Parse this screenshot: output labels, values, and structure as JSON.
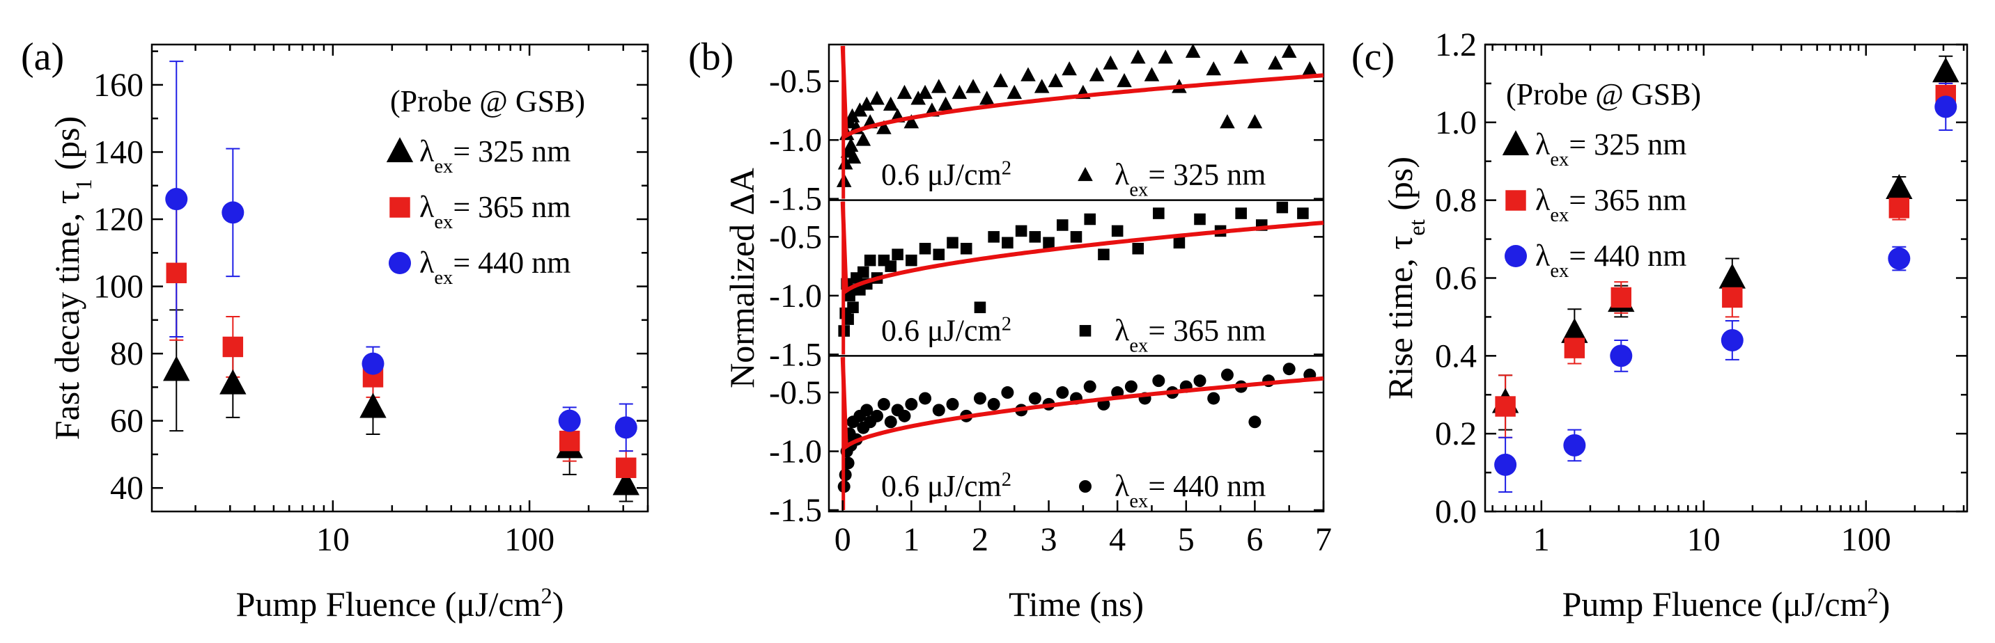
{
  "colors": {
    "black": "#000000",
    "red": "#e8201c",
    "blue": "#1f1fe6",
    "fit": "#e81010"
  },
  "chart_data": [
    {
      "type": "scatter",
      "panel_label": "(a)",
      "xscale": "log",
      "xlim": [
        1.2,
        400
      ],
      "ylim": [
        33,
        172
      ],
      "xlabel": {
        "text": "Pump Fluence (μJ/cm",
        "sup": "2",
        "close": ")"
      },
      "ylabel": {
        "text": "Fast decay time, τ",
        "sub": "1",
        "close": " (ps)"
      },
      "xticks": [
        {
          "value": 10,
          "label": "10"
        },
        {
          "value": 100,
          "label": "100"
        }
      ],
      "yticks": [
        {
          "value": 40,
          "label": "40"
        },
        {
          "value": 60,
          "label": "60"
        },
        {
          "value": 80,
          "label": "80"
        },
        {
          "value": 100,
          "label": "100"
        },
        {
          "value": 120,
          "label": "120"
        },
        {
          "value": 140,
          "label": "140"
        },
        {
          "value": 160,
          "label": "160"
        }
      ],
      "legend": {
        "header": "(Probe @ GSB)",
        "entries": [
          {
            "prefix": "λ",
            "sub": "ex",
            "text": "= 325 nm"
          },
          {
            "prefix": "λ",
            "sub": "ex",
            "text": "= 365 nm"
          },
          {
            "prefix": "λ",
            "sub": "ex",
            "text": "= 440 nm"
          }
        ]
      },
      "series": [
        {
          "name": "λex= 325 nm",
          "marker": "triangle",
          "color": "#000000",
          "x": [
            1.6,
            3.1,
            16,
            160,
            310
          ],
          "y": [
            75,
            71,
            64,
            52,
            41
          ],
          "err": [
            18,
            10,
            8,
            8,
            5
          ]
        },
        {
          "name": "λex= 365 nm",
          "marker": "square",
          "color": "#e8201c",
          "x": [
            1.6,
            3.1,
            16,
            160,
            310
          ],
          "y": [
            104,
            82,
            73,
            54,
            46
          ],
          "err": [
            20,
            9,
            6,
            6,
            5
          ]
        },
        {
          "name": "λex= 440 nm",
          "marker": "circle",
          "color": "#1f1fe6",
          "x": [
            1.6,
            3.1,
            16,
            160,
            310
          ],
          "y": [
            126,
            122,
            77,
            60,
            58
          ],
          "err": [
            41,
            19,
            5,
            4,
            7
          ]
        }
      ]
    },
    {
      "type": "scatter",
      "panel_label": "(b)",
      "xlim": [
        -0.2,
        7
      ],
      "xlabel": {
        "text": "Time (ns)"
      },
      "ylabel": {
        "text": "Normalized ΔA"
      },
      "xticks": [
        {
          "value": 0,
          "label": "0"
        },
        {
          "value": 1,
          "label": "1"
        },
        {
          "value": 2,
          "label": "2"
        },
        {
          "value": 3,
          "label": "3"
        },
        {
          "value": 4,
          "label": "4"
        },
        {
          "value": 5,
          "label": "5"
        },
        {
          "value": 6,
          "label": "6"
        },
        {
          "value": 7,
          "label": "7"
        }
      ],
      "subpanels": [
        {
          "ylim": [
            -1.5,
            -0.2
          ],
          "marker": "triangle",
          "yticks": [
            {
              "value": -0.5,
              "label": "-0.5"
            },
            {
              "value": -1.0,
              "label": "-1.0"
            },
            {
              "value": -1.5,
              "label": "-1.5"
            }
          ],
          "fluence": {
            "text": "0.6 μJ/cm",
            "sup": "2"
          },
          "label": {
            "prefix": "λ",
            "sub": "ex",
            "text": "= 325 nm"
          },
          "fit": {
            "y0": -1.0,
            "y7": -0.45
          },
          "x": [
            0.02,
            0.04,
            0.06,
            0.08,
            0.1,
            0.12,
            0.14,
            0.16,
            0.2,
            0.25,
            0.3,
            0.35,
            0.4,
            0.5,
            0.6,
            0.7,
            0.8,
            0.9,
            1.0,
            1.1,
            1.2,
            1.3,
            1.4,
            1.5,
            1.7,
            1.9,
            2.1,
            2.3,
            2.5,
            2.7,
            2.9,
            3.1,
            3.3,
            3.5,
            3.7,
            3.9,
            4.1,
            4.3,
            4.5,
            4.7,
            4.9,
            5.1,
            5.4,
            5.6,
            5.8,
            6.0,
            6.3,
            6.5,
            6.8
          ],
          "y": [
            -1.35,
            -1.2,
            -0.95,
            -1.1,
            -0.85,
            -1.05,
            -0.8,
            -1.15,
            -0.9,
            -0.75,
            -1.0,
            -0.7,
            -0.85,
            -0.65,
            -0.9,
            -0.7,
            -0.8,
            -0.6,
            -0.85,
            -0.65,
            -0.6,
            -0.75,
            -0.55,
            -0.7,
            -0.6,
            -0.55,
            -0.65,
            -0.5,
            -0.6,
            -0.45,
            -0.55,
            -0.5,
            -0.4,
            -0.6,
            -0.45,
            -0.35,
            -0.5,
            -0.3,
            -0.45,
            -0.3,
            -0.55,
            -0.25,
            -0.4,
            -0.85,
            -0.3,
            -0.85,
            -0.35,
            -0.25,
            -0.4
          ]
        },
        {
          "ylim": [
            -1.5,
            -0.2
          ],
          "marker": "square",
          "yticks": [
            {
              "value": -0.5,
              "label": "-0.5"
            },
            {
              "value": -1.0,
              "label": "-1.0"
            },
            {
              "value": -1.5,
              "label": "-1.5"
            }
          ],
          "fluence": {
            "text": "0.6 μJ/cm",
            "sup": "2"
          },
          "label": {
            "prefix": "λ",
            "sub": "ex",
            "text": "= 365 nm"
          },
          "fit": {
            "y0": -1.0,
            "y7": -0.38
          },
          "x": [
            0.02,
            0.04,
            0.06,
            0.08,
            0.1,
            0.12,
            0.15,
            0.2,
            0.25,
            0.3,
            0.35,
            0.4,
            0.5,
            0.6,
            0.7,
            0.8,
            1.0,
            1.2,
            1.4,
            1.6,
            1.8,
            2.0,
            2.2,
            2.4,
            2.6,
            2.8,
            3.0,
            3.2,
            3.4,
            3.6,
            3.8,
            4.0,
            4.3,
            4.6,
            4.9,
            5.2,
            5.5,
            5.8,
            6.1,
            6.4,
            6.7
          ],
          "y": [
            -1.3,
            -1.15,
            -0.9,
            -1.2,
            -1.0,
            -0.95,
            -1.1,
            -0.85,
            -0.95,
            -0.8,
            -0.9,
            -0.7,
            -0.85,
            -0.7,
            -0.75,
            -0.65,
            -0.7,
            -0.6,
            -0.65,
            -0.55,
            -0.6,
            -1.1,
            -0.5,
            -0.55,
            -0.45,
            -0.5,
            -0.55,
            -0.4,
            -0.5,
            -0.35,
            -0.65,
            -0.45,
            -0.6,
            -0.3,
            -0.55,
            -0.35,
            -0.45,
            -0.3,
            -0.4,
            -0.25,
            -0.3
          ]
        },
        {
          "ylim": [
            -1.5,
            -0.2
          ],
          "marker": "circle",
          "yticks": [
            {
              "value": -0.5,
              "label": "-0.5"
            },
            {
              "value": -1.0,
              "label": "-1.0"
            },
            {
              "value": -1.5,
              "label": "-1.5"
            }
          ],
          "fluence": {
            "text": "0.6 μJ/cm",
            "sup": "2"
          },
          "label": {
            "prefix": "λ",
            "sub": "ex",
            "text": "= 440 nm"
          },
          "fit": {
            "y0": -1.0,
            "y7": -0.38
          },
          "x": [
            0.02,
            0.04,
            0.06,
            0.08,
            0.1,
            0.12,
            0.15,
            0.2,
            0.25,
            0.3,
            0.35,
            0.4,
            0.5,
            0.6,
            0.7,
            0.8,
            0.9,
            1.0,
            1.2,
            1.4,
            1.6,
            1.8,
            2.0,
            2.2,
            2.4,
            2.6,
            2.8,
            3.0,
            3.2,
            3.4,
            3.6,
            3.8,
            4.0,
            4.2,
            4.4,
            4.6,
            4.8,
            5.0,
            5.2,
            5.4,
            5.6,
            5.8,
            6.0,
            6.2,
            6.5,
            6.8
          ],
          "y": [
            -1.3,
            -1.2,
            -1.0,
            -1.1,
            -0.85,
            -0.95,
            -0.75,
            -0.9,
            -0.7,
            -0.8,
            -0.65,
            -0.75,
            -0.7,
            -0.6,
            -0.75,
            -0.65,
            -0.7,
            -0.6,
            -0.55,
            -0.65,
            -0.6,
            -0.7,
            -0.55,
            -0.6,
            -0.5,
            -0.65,
            -0.55,
            -0.6,
            -0.5,
            -0.55,
            -0.45,
            -0.6,
            -0.5,
            -0.45,
            -0.55,
            -0.4,
            -0.5,
            -0.45,
            -0.4,
            -0.55,
            -0.35,
            -0.45,
            -0.75,
            -0.4,
            -0.3,
            -0.35
          ]
        }
      ]
    },
    {
      "type": "scatter",
      "panel_label": "(c)",
      "xscale": "log",
      "xlim": [
        0.45,
        420
      ],
      "ylim": [
        0,
        1.2
      ],
      "xlabel": {
        "text": "Pump Fluence (μJ/cm",
        "sup": "2",
        "close": ")"
      },
      "ylabel": {
        "text": "Rise time, τ",
        "sub": "et",
        "close": " (ps)"
      },
      "xticks": [
        {
          "value": 1,
          "label": "1"
        },
        {
          "value": 10,
          "label": "10"
        },
        {
          "value": 100,
          "label": "100"
        }
      ],
      "yticks": [
        {
          "value": 0.0,
          "label": "0.0"
        },
        {
          "value": 0.2,
          "label": "0.2"
        },
        {
          "value": 0.4,
          "label": "0.4"
        },
        {
          "value": 0.6,
          "label": "0.6"
        },
        {
          "value": 0.8,
          "label": "0.8"
        },
        {
          "value": 1.0,
          "label": "1.0"
        },
        {
          "value": 1.2,
          "label": "1.2"
        }
      ],
      "legend": {
        "header": "(Probe @ GSB)",
        "entries": [
          {
            "prefix": "λ",
            "sub": "ex",
            "text": "= 325 nm"
          },
          {
            "prefix": "λ",
            "sub": "ex",
            "text": "= 365 nm"
          },
          {
            "prefix": "λ",
            "sub": "ex",
            "text": "= 440 nm"
          }
        ]
      },
      "series": [
        {
          "name": "λex= 325 nm",
          "marker": "triangle",
          "color": "#000000",
          "x": [
            0.6,
            1.6,
            3.1,
            15,
            160,
            310
          ],
          "y": [
            0.28,
            0.46,
            0.54,
            0.6,
            0.83,
            1.13
          ],
          "err": [
            0.07,
            0.06,
            0.04,
            0.05,
            0.03,
            0.04
          ]
        },
        {
          "name": "λex= 365 nm",
          "marker": "square",
          "color": "#e8201c",
          "x": [
            0.6,
            1.6,
            3.1,
            15,
            160,
            310
          ],
          "y": [
            0.27,
            0.42,
            0.55,
            0.55,
            0.78,
            1.07
          ],
          "err": [
            0.08,
            0.04,
            0.04,
            0.05,
            0.03,
            0.03
          ]
        },
        {
          "name": "λex= 440 nm",
          "marker": "circle",
          "color": "#1f1fe6",
          "x": [
            0.6,
            1.6,
            3.1,
            15,
            160,
            310
          ],
          "y": [
            0.12,
            0.17,
            0.4,
            0.44,
            0.65,
            1.04
          ],
          "err": [
            0.07,
            0.04,
            0.04,
            0.05,
            0.03,
            0.06
          ]
        }
      ]
    }
  ]
}
